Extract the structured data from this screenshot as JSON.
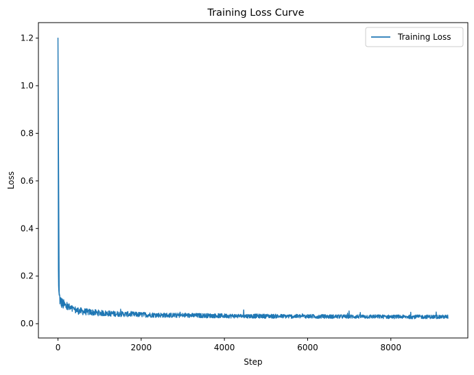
{
  "chart_data": {
    "type": "line",
    "title": "Training Loss Curve",
    "xlabel": "Step",
    "ylabel": "Loss",
    "xlim": [
      -470,
      9850
    ],
    "ylim": [
      -0.06,
      1.265
    ],
    "xticks": [
      0,
      2000,
      4000,
      6000,
      8000
    ],
    "xtick_labels": [
      "0",
      "2000",
      "4000",
      "6000",
      "8000"
    ],
    "yticks": [
      0.0,
      0.2,
      0.4,
      0.6,
      0.8,
      1.0,
      1.2
    ],
    "ytick_labels": [
      "0.0",
      "0.2",
      "0.4",
      "0.6",
      "0.8",
      "1.0",
      "1.2"
    ],
    "grid": false,
    "legend": {
      "position": "upper-right",
      "entries": [
        "Training Loss"
      ]
    },
    "series": [
      {
        "name": "Training Loss",
        "color": "#1f77b4",
        "x": [
          0,
          5,
          10,
          15,
          20,
          30,
          40,
          50,
          75,
          100,
          150,
          200,
          250,
          300,
          350,
          400,
          500,
          600,
          800,
          1000,
          1200,
          1500,
          2000,
          2500,
          3000,
          3500,
          4000,
          4500,
          5000,
          5500,
          6000,
          6500,
          7000,
          7500,
          8000,
          8500,
          9000,
          9380
        ],
        "y": [
          1.2,
          0.83,
          0.23,
          0.16,
          0.14,
          0.12,
          0.11,
          0.1,
          0.09,
          0.085,
          0.078,
          0.072,
          0.068,
          0.064,
          0.06,
          0.058,
          0.054,
          0.051,
          0.048,
          0.045,
          0.043,
          0.041,
          0.038,
          0.036,
          0.035,
          0.034,
          0.033,
          0.032,
          0.032,
          0.031,
          0.031,
          0.03,
          0.03,
          0.03,
          0.029,
          0.029,
          0.029,
          0.029
        ]
      }
    ]
  }
}
